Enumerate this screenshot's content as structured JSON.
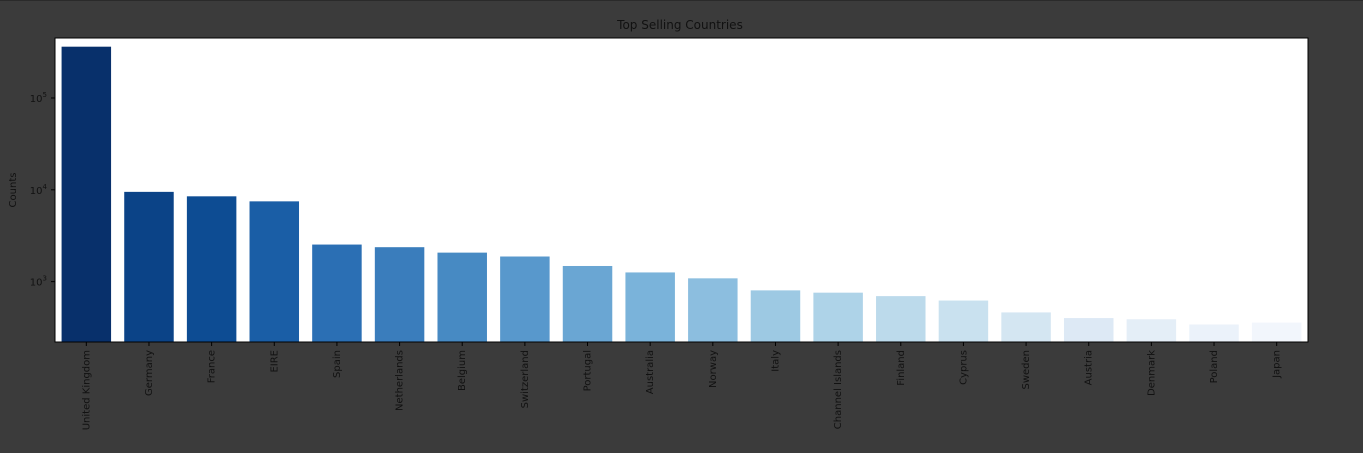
{
  "chart_data": {
    "type": "bar",
    "title": "Top Selling Countries",
    "xlabel": "",
    "ylabel": "Counts",
    "yscale": "log",
    "ylim": [
      220,
      450000
    ],
    "yticks": [
      {
        "value": 1000,
        "base": "10",
        "exp": "3"
      },
      {
        "value": 10000,
        "base": "10",
        "exp": "4"
      },
      {
        "value": 100000,
        "base": "10",
        "exp": "5"
      }
    ],
    "grid": false,
    "legend": "none",
    "colormap": "Blues_r",
    "categories": [
      "United Kingdom",
      "Germany",
      "France",
      "EIRE",
      "Spain",
      "Netherlands",
      "Belgium",
      "Switzerland",
      "Portugal",
      "Australia",
      "Norway",
      "Italy",
      "Channel Islands",
      "Finland",
      "Cyprus",
      "Sweden",
      "Austria",
      "Denmark",
      "Poland",
      "Japan"
    ],
    "values": [
      361878,
      9495,
      8491,
      7485,
      2533,
      2371,
      2069,
      1877,
      1480,
      1259,
      1086,
      803,
      758,
      695,
      622,
      462,
      401,
      389,
      341,
      358
    ],
    "colors": [
      "#08306b",
      "#0b4387",
      "#0d4c93",
      "#1a5ea6",
      "#2b6fb4",
      "#3a7dbc",
      "#478ac3",
      "#5898cc",
      "#6aa6d3",
      "#7ab3da",
      "#8cbedf",
      "#9dc9e3",
      "#aed3e8",
      "#bcdaeb",
      "#c9e1ef",
      "#d4e6f2",
      "#dde9f5",
      "#e4eef7",
      "#ebf2fa",
      "#f2f6fc"
    ]
  }
}
